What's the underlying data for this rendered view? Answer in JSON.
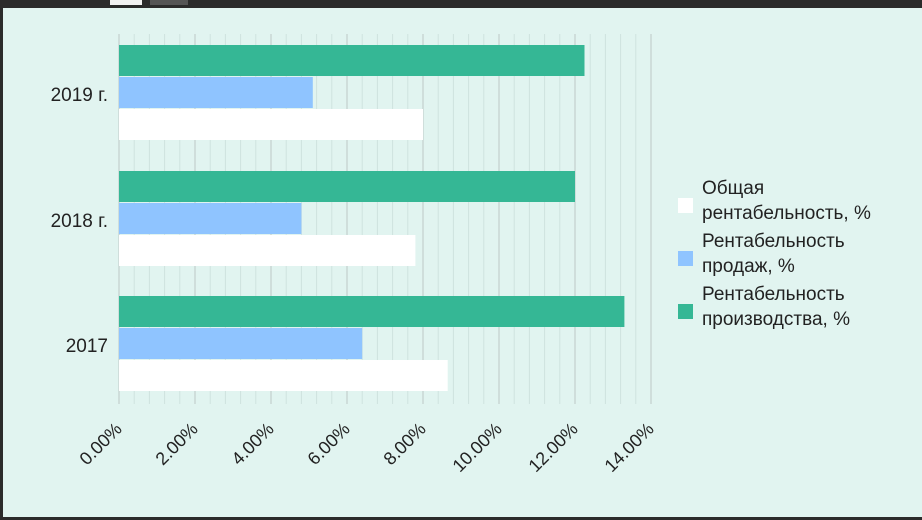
{
  "chart_data": {
    "type": "bar",
    "orientation": "horizontal",
    "categories": [
      "2019 г.",
      "2018 г.",
      "2017"
    ],
    "series": [
      {
        "name_lines": [
          "Рентабельность",
          "производства, %"
        ],
        "name": "Рентабельность производства, %",
        "color": "#35b795",
        "values": [
          12.25,
          12.0,
          13.3
        ]
      },
      {
        "name_lines": [
          "Рентабельность",
          "продаж, %"
        ],
        "name": "Рентабельность продаж, %",
        "color": "#8fc4ff",
        "values": [
          5.1,
          4.8,
          6.4
        ]
      },
      {
        "name_lines": [
          "Общая",
          "рентабельность, %"
        ],
        "name": "Общая рентабельность, %",
        "color": "#ffffff",
        "values": [
          8.0,
          7.8,
          8.65
        ]
      }
    ],
    "xlim": [
      0,
      14
    ],
    "xticks": [
      "0.00%",
      "2.00%",
      "4.00%",
      "6.00%",
      "8.00%",
      "10.00%",
      "12.00%",
      "14.00%"
    ],
    "grid": true,
    "legend_placement": "right",
    "legend_order": [
      2,
      1,
      0
    ]
  }
}
